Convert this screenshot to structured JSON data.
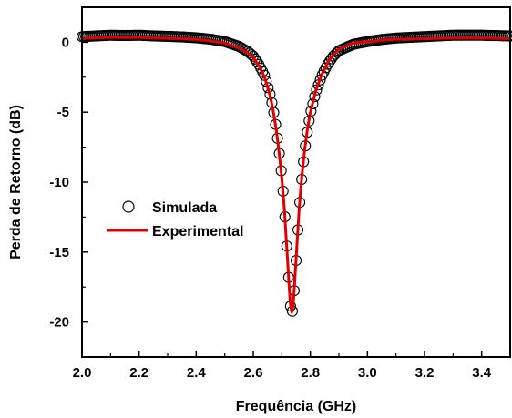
{
  "chart_data": {
    "type": "scatter",
    "xlabel": "Frequência (GHz)",
    "ylabel": "Perda de Retorno (dB)",
    "xlim": [
      2.0,
      3.5
    ],
    "ylim": [
      -22.5,
      2.5
    ],
    "x_ticks": [
      "2.0",
      "2.2",
      "2.4",
      "2.6",
      "2.8",
      "3.0",
      "3.2",
      "3.4"
    ],
    "y_ticks": [
      "0",
      "-5",
      "-10",
      "-15",
      "-20"
    ],
    "grid": false,
    "legend_position": "left",
    "resonance_ghz": 2.735,
    "min_db": -19.5,
    "series": [
      {
        "name": "Simulada",
        "style": "open-circle",
        "color": "#000000",
        "x": [
          2.0,
          2.05,
          2.1,
          2.15,
          2.2,
          2.25,
          2.3,
          2.35,
          2.4,
          2.45,
          2.5,
          2.55,
          2.58,
          2.6,
          2.62,
          2.64,
          2.66,
          2.67,
          2.68,
          2.69,
          2.7,
          2.705,
          2.71,
          2.715,
          2.72,
          2.725,
          2.73,
          2.735,
          2.74,
          2.745,
          2.75,
          2.755,
          2.76,
          2.765,
          2.77,
          2.78,
          2.79,
          2.8,
          2.82,
          2.84,
          2.86,
          2.88,
          2.9,
          2.95,
          3.0,
          3.05,
          3.1,
          3.2,
          3.3,
          3.4,
          3.5
        ],
        "y": [
          0.4,
          0.45,
          0.5,
          0.48,
          0.5,
          0.45,
          0.42,
          0.38,
          0.32,
          0.22,
          0.05,
          -0.3,
          -0.65,
          -1.0,
          -1.6,
          -2.4,
          -3.8,
          -4.8,
          -6.1,
          -7.7,
          -9.6,
          -10.8,
          -12.2,
          -13.8,
          -15.4,
          -17.2,
          -18.8,
          -19.5,
          -18.8,
          -17.3,
          -15.6,
          -13.9,
          -12.3,
          -10.9,
          -9.7,
          -7.8,
          -6.3,
          -5.1,
          -3.5,
          -2.4,
          -1.6,
          -1.0,
          -0.6,
          -0.15,
          0.05,
          0.2,
          0.3,
          0.4,
          0.5,
          0.5,
          0.45
        ]
      },
      {
        "name": "Experimental",
        "style": "line",
        "color": "#e00000",
        "x": [
          2.0,
          2.05,
          2.1,
          2.15,
          2.2,
          2.25,
          2.3,
          2.35,
          2.4,
          2.45,
          2.5,
          2.55,
          2.58,
          2.6,
          2.62,
          2.64,
          2.66,
          2.67,
          2.68,
          2.69,
          2.7,
          2.705,
          2.71,
          2.715,
          2.72,
          2.725,
          2.73,
          2.735,
          2.74,
          2.745,
          2.75,
          2.755,
          2.76,
          2.765,
          2.77,
          2.78,
          2.79,
          2.8,
          2.82,
          2.84,
          2.86,
          2.88,
          2.9,
          2.95,
          3.0,
          3.05,
          3.1,
          3.2,
          3.3,
          3.4,
          3.5
        ],
        "y": [
          0.3,
          0.32,
          0.35,
          0.33,
          0.35,
          0.3,
          0.28,
          0.25,
          0.2,
          0.1,
          -0.05,
          -0.4,
          -0.75,
          -1.1,
          -1.7,
          -2.5,
          -3.9,
          -4.9,
          -6.2,
          -7.8,
          -9.7,
          -10.9,
          -12.3,
          -13.9,
          -15.5,
          -17.3,
          -18.7,
          -19.3,
          -18.7,
          -17.2,
          -15.5,
          -13.8,
          -12.2,
          -10.8,
          -9.6,
          -7.7,
          -6.2,
          -5.0,
          -3.4,
          -2.3,
          -1.5,
          -0.9,
          -0.5,
          -0.05,
          0.05,
          0.15,
          0.2,
          0.25,
          0.3,
          0.3,
          0.25
        ]
      }
    ]
  }
}
